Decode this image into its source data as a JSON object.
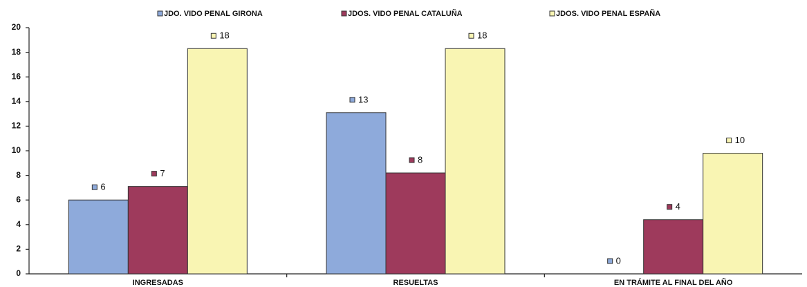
{
  "chart_data": {
    "type": "bar",
    "categories": [
      "INGRESADAS",
      "RESUELTAS",
      "EN TRÁMITE AL FINAL DEL AÑO"
    ],
    "series": [
      {
        "name": "JDO. VIDO PENAL  GIRONA",
        "color": "#8eaadb",
        "values": [
          6,
          13.1,
          0
        ],
        "value_labels": [
          "6",
          "13",
          "0"
        ]
      },
      {
        "name": "JDOS. VIDO PENAL  CATALUÑA",
        "color": "#9e3a5c",
        "values": [
          7.1,
          8.2,
          4.4
        ],
        "value_labels": [
          "7",
          "8",
          "4"
        ]
      },
      {
        "name": "JDOS. VIDO PENAL  ESPAÑA",
        "color": "#f9f5b3",
        "values": [
          18.3,
          18.3,
          9.8
        ],
        "value_labels": [
          "18",
          "18",
          "10"
        ]
      }
    ],
    "ylim": [
      0,
      20
    ],
    "yticks": [
      0,
      2,
      4,
      6,
      8,
      10,
      12,
      14,
      16,
      18,
      20
    ],
    "legend": "top"
  }
}
